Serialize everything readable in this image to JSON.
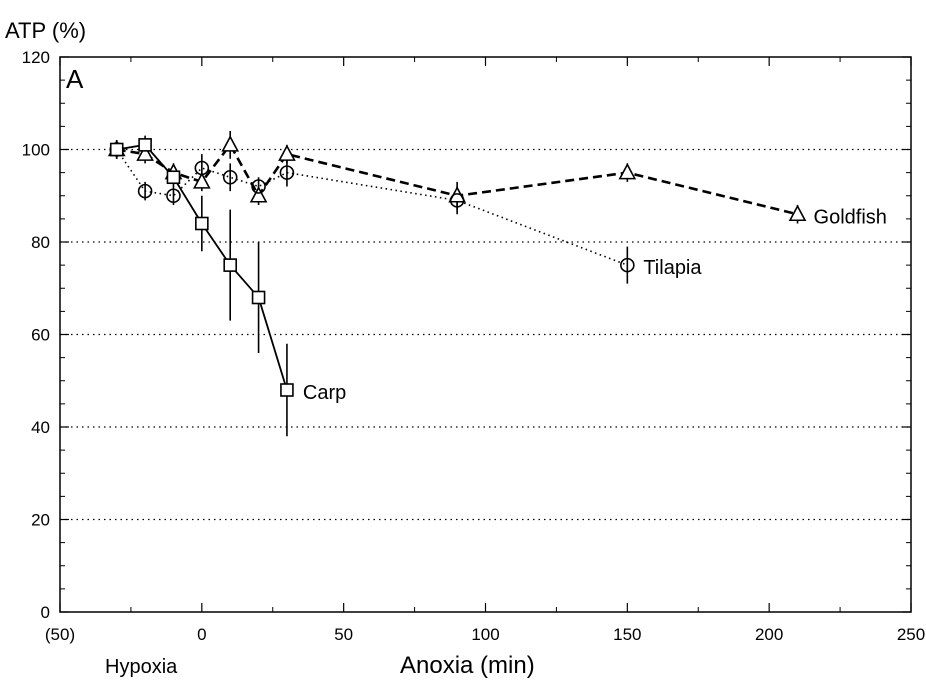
{
  "chart_data": {
    "type": "line",
    "panel_label": "A",
    "ylabel": "ATP (%)",
    "xlabel": "Anoxia (min)",
    "hypoxia_label": "Hypoxia",
    "xlim": [
      -50,
      250
    ],
    "ylim": [
      0,
      120
    ],
    "x_ticks": [
      -50,
      0,
      50,
      100,
      150,
      200,
      250
    ],
    "x_tick_labels": [
      "(50)",
      "0",
      "50",
      "100",
      "150",
      "200",
      "250"
    ],
    "y_ticks": [
      0,
      20,
      40,
      60,
      80,
      100,
      120
    ],
    "y_tick_labels": [
      "0",
      "20",
      "40",
      "60",
      "80",
      "100",
      "120"
    ],
    "grid": "horizontal dotted at 20, 40, 60, 80, 100",
    "series": [
      {
        "name": "Goldfish",
        "marker": "triangle",
        "line": "dashed",
        "points": [
          {
            "x": -30,
            "y": 100,
            "err": 2
          },
          {
            "x": -20,
            "y": 99,
            "err": 2
          },
          {
            "x": -10,
            "y": 95,
            "err": 2
          },
          {
            "x": 0,
            "y": 93,
            "err": 2
          },
          {
            "x": 10,
            "y": 101,
            "err": 3
          },
          {
            "x": 20,
            "y": 90,
            "err": 2
          },
          {
            "x": 30,
            "y": 99,
            "err": 2
          },
          {
            "x": 90,
            "y": 90,
            "err": 3
          },
          {
            "x": 150,
            "y": 95,
            "err": 2
          },
          {
            "x": 210,
            "y": 86,
            "err": 2
          }
        ]
      },
      {
        "name": "Tilapia",
        "marker": "circle",
        "line": "dotted",
        "points": [
          {
            "x": -30,
            "y": 100,
            "err": 2
          },
          {
            "x": -20,
            "y": 91,
            "err": 2
          },
          {
            "x": -10,
            "y": 90,
            "err": 2
          },
          {
            "x": 0,
            "y": 96,
            "err": 3
          },
          {
            "x": 10,
            "y": 94,
            "err": 3
          },
          {
            "x": 20,
            "y": 92,
            "err": 2
          },
          {
            "x": 30,
            "y": 95,
            "err": 3
          },
          {
            "x": 90,
            "y": 89,
            "err": 3
          },
          {
            "x": 150,
            "y": 75,
            "err": 4
          }
        ]
      },
      {
        "name": "Carp",
        "marker": "square",
        "line": "solid",
        "points": [
          {
            "x": -30,
            "y": 100,
            "err": 2
          },
          {
            "x": -20,
            "y": 101,
            "err": 2
          },
          {
            "x": -10,
            "y": 94,
            "err": 2
          },
          {
            "x": 0,
            "y": 84,
            "err": 6
          },
          {
            "x": 10,
            "y": 75,
            "err": 12
          },
          {
            "x": 20,
            "y": 68,
            "err": 12
          },
          {
            "x": 30,
            "y": 48,
            "err": 10
          }
        ]
      }
    ]
  }
}
